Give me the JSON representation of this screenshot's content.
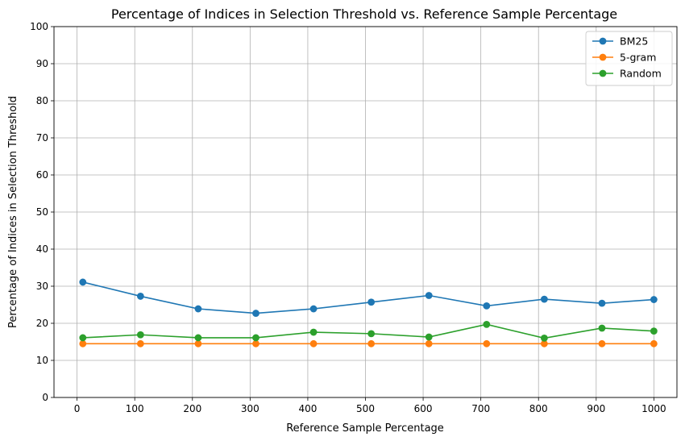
{
  "chart_data": {
    "type": "line",
    "title": "Percentage of Indices in Selection Threshold vs. Reference Sample Percentage",
    "xlabel": "Reference Sample Percentage",
    "ylabel": "Percentage of Indices in Selection Threshold",
    "x": [
      10,
      110,
      210,
      310,
      410,
      510,
      610,
      710,
      810,
      910,
      1000
    ],
    "xticks": [
      0,
      100,
      200,
      300,
      400,
      500,
      600,
      700,
      800,
      900,
      1000
    ],
    "yticks": [
      0,
      10,
      20,
      30,
      40,
      50,
      60,
      70,
      80,
      90,
      100
    ],
    "xlim": [
      -40,
      1040
    ],
    "ylim": [
      0,
      100
    ],
    "grid": true,
    "legend_position": "top-right",
    "series": [
      {
        "name": "BM25",
        "color": "#1f77b4",
        "values": [
          31.1,
          27.3,
          23.9,
          22.7,
          23.9,
          25.7,
          27.5,
          24.7,
          26.5,
          25.4,
          26.4
        ]
      },
      {
        "name": "5-gram",
        "color": "#ff7f0e",
        "values": [
          14.5,
          14.5,
          14.5,
          14.5,
          14.5,
          14.5,
          14.5,
          14.5,
          14.5,
          14.5,
          14.5
        ]
      },
      {
        "name": "Random",
        "color": "#2ca02c",
        "values": [
          16.1,
          16.9,
          16.1,
          16.1,
          17.6,
          17.2,
          16.3,
          19.7,
          16.0,
          18.7,
          17.9
        ]
      }
    ]
  }
}
